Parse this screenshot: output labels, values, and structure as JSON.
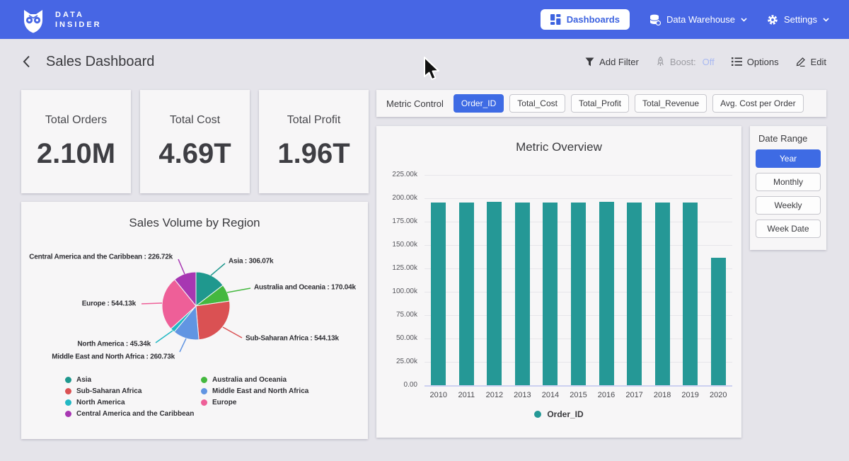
{
  "nav": {
    "brand_line1": "DATA",
    "brand_line2": "INSIDER",
    "dashboards_label": "Dashboards",
    "data_warehouse_label": "Data Warehouse",
    "settings_label": "Settings"
  },
  "header": {
    "title": "Sales Dashboard",
    "add_filter_label": "Add Filter",
    "boost_label": "Boost:",
    "boost_state": "Off",
    "options_label": "Options",
    "edit_label": "Edit"
  },
  "kpis": [
    {
      "label": "Total Orders",
      "value": "2.10M"
    },
    {
      "label": "Total Cost",
      "value": "4.69T"
    },
    {
      "label": "Total Profit",
      "value": "1.96T"
    }
  ],
  "metric_control": {
    "label": "Metric Control",
    "options": [
      "Order_ID",
      "Total_Cost",
      "Total_Profit",
      "Total_Revenue",
      "Avg. Cost per Order"
    ],
    "active": "Order_ID"
  },
  "date_range": {
    "label": "Date Range",
    "options": [
      "Year",
      "Monthly",
      "Weekly",
      "Week Date"
    ],
    "active": "Year"
  },
  "chart_data": [
    {
      "type": "bar",
      "title": "Metric Overview",
      "categories": [
        "2010",
        "2011",
        "2012",
        "2013",
        "2014",
        "2015",
        "2016",
        "2017",
        "2018",
        "2019",
        "2020"
      ],
      "series": [
        {
          "name": "Order_ID",
          "color": "#259896",
          "values": [
            195.4,
            195.4,
            196.3,
            195.3,
            195.2,
            195.3,
            196.4,
            195.5,
            195.4,
            195.4,
            136.2
          ]
        }
      ],
      "unit": "k",
      "ylim": [
        0,
        225
      ],
      "ytick_values": [
        0,
        25,
        50,
        75,
        100,
        125,
        150,
        175,
        200,
        225
      ],
      "ytick_labels": [
        "0.00",
        "25.00k",
        "50.00k",
        "75.00k",
        "100.00k",
        "125.00k",
        "150.00k",
        "175.00k",
        "200.00k",
        "225.00k"
      ],
      "grid": true,
      "legend_position": "bottom"
    },
    {
      "type": "pie",
      "title": "Sales Volume by Region",
      "slices": [
        {
          "name": "Asia",
          "value_k": 306.07,
          "display": "Asia : 306.07k",
          "color": "#1f988e"
        },
        {
          "name": "Australia and Oceania",
          "value_k": 170.04,
          "display": "Australia and Oceania : 170.04k",
          "color": "#44b83f"
        },
        {
          "name": "Sub-Saharan Africa",
          "value_k": 544.13,
          "display": "Sub-Saharan Africa : 544.13k",
          "color": "#da5153"
        },
        {
          "name": "Middle East and North Africa",
          "value_k": 260.73,
          "display": "Middle East and North Africa : 260.73k",
          "color": "#6195e2"
        },
        {
          "name": "North America",
          "value_k": 45.34,
          "display": "North America : 45.34k",
          "color": "#22b8c4"
        },
        {
          "name": "Europe",
          "value_k": 544.13,
          "display": "Europe : 544.13k",
          "color": "#ee5f98"
        },
        {
          "name": "Central America and the Caribbean",
          "value_k": 226.72,
          "display": "Central America and the Caribbean : 226.72k",
          "color": "#a737b2"
        }
      ],
      "legend_position": "bottom"
    }
  ],
  "colors": {
    "nav_blue": "#4766e4",
    "active_blue": "#3e6be4",
    "bar_teal": "#259896",
    "page_bg": "#e5e4ea",
    "card_bg": "#f7f6f7"
  }
}
